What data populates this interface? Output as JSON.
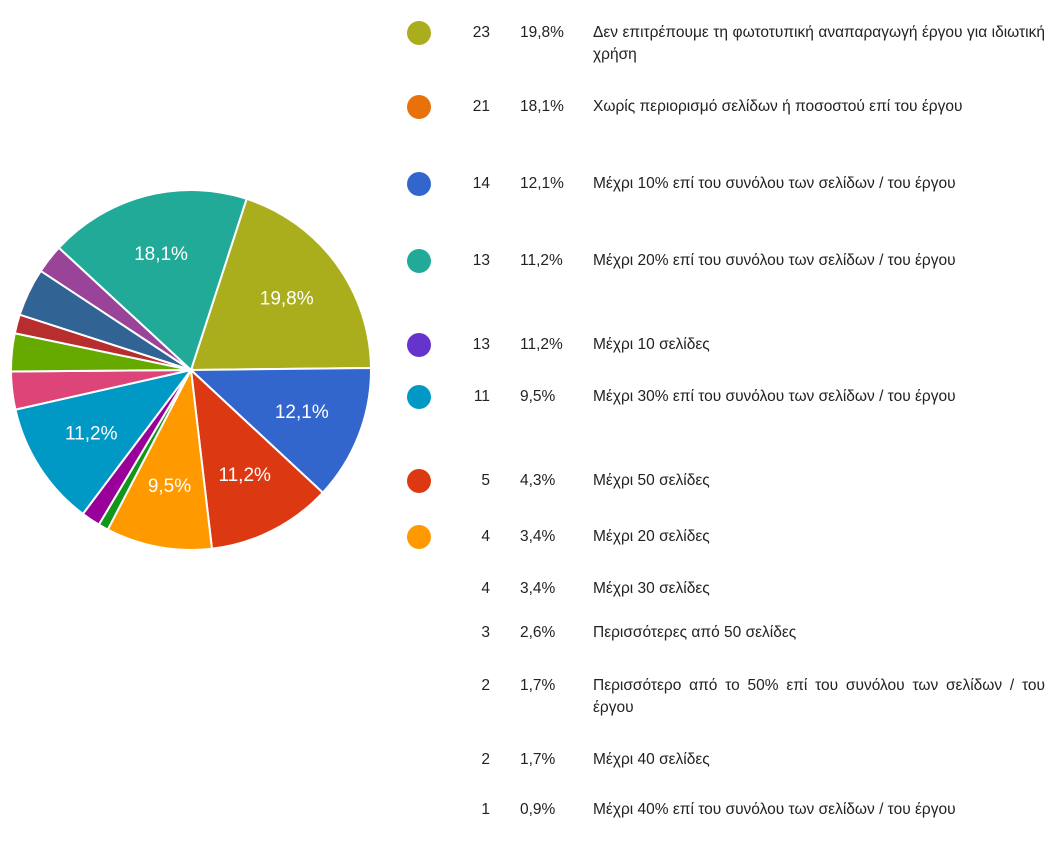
{
  "chart_data": {
    "type": "pie",
    "values": [
      19.8,
      12.1,
      11.2,
      9.5,
      0.9,
      1.7,
      11.2,
      3.4,
      3.4,
      1.7,
      4.3,
      2.6,
      18.1
    ],
    "value_labels": [
      "19,8%",
      "12,1%",
      "11,2%",
      "9,5%",
      null,
      null,
      "11,2%",
      null,
      null,
      null,
      null,
      null,
      "18,1%"
    ],
    "colors": [
      "#aaae1c",
      "#3366cc",
      "#dc3912",
      "#ff9900",
      "#109618",
      "#990099",
      "#0099c6",
      "#dd4477",
      "#66aa00",
      "#b82e2e",
      "#316395",
      "#994499",
      "#22aa99"
    ]
  },
  "legend": {
    "rows": [
      {
        "count": 23,
        "percent": "19,8%",
        "label": "Δεν επιτρέπουμε τη φωτοτυπική αναπαραγωγή έργου για ιδιωτική χρήση",
        "color": "#aaae1c"
      },
      {
        "count": 21,
        "percent": "18,1%",
        "label": "Χωρίς περιορισμό σελίδων ή ποσοστού επί του έργου",
        "color": "#e8710a"
      },
      {
        "count": 14,
        "percent": "12,1%",
        "label": "Μέχρι 10% επί του συνόλου των σελίδων / του έργου",
        "color": "#3366cc"
      },
      {
        "count": 13,
        "percent": "11,2%",
        "label": "Μέχρι 20% επί του συνόλου των σελίδων / του έργου",
        "color": "#22aa99"
      },
      {
        "count": 13,
        "percent": "11,2%",
        "label": "Μέχρι 10 σελίδες",
        "color": "#6633cc"
      },
      {
        "count": 11,
        "percent": "9,5%",
        "label": "Μέχρι 30% επί του συνόλου των σελίδων / του έργου",
        "color": "#0099c6"
      },
      {
        "count": 5,
        "percent": "4,3%",
        "label": "Μέχρι 50 σελίδες",
        "color": "#dc3912"
      },
      {
        "count": 4,
        "percent": "3,4%",
        "label": "Μέχρι 20 σελίδες",
        "color": "#ff9900"
      },
      {
        "count": 4,
        "percent": "3,4%",
        "label": "Μέχρι 30 σελίδες"
      },
      {
        "count": 3,
        "percent": "2,6%",
        "label": "Περισσότερες από 50 σελίδες"
      },
      {
        "count": 2,
        "percent": "1,7%",
        "label": "Περισσότερο από το 50% επί του συνόλου των σελίδων / του έργου"
      },
      {
        "count": 2,
        "percent": "1,7%",
        "label": "Μέχρι 40 σελίδες"
      },
      {
        "count": 1,
        "percent": "0,9%",
        "label": "Μέχρι 40% επί του συνόλου των σελίδων / του έργου"
      }
    ]
  }
}
